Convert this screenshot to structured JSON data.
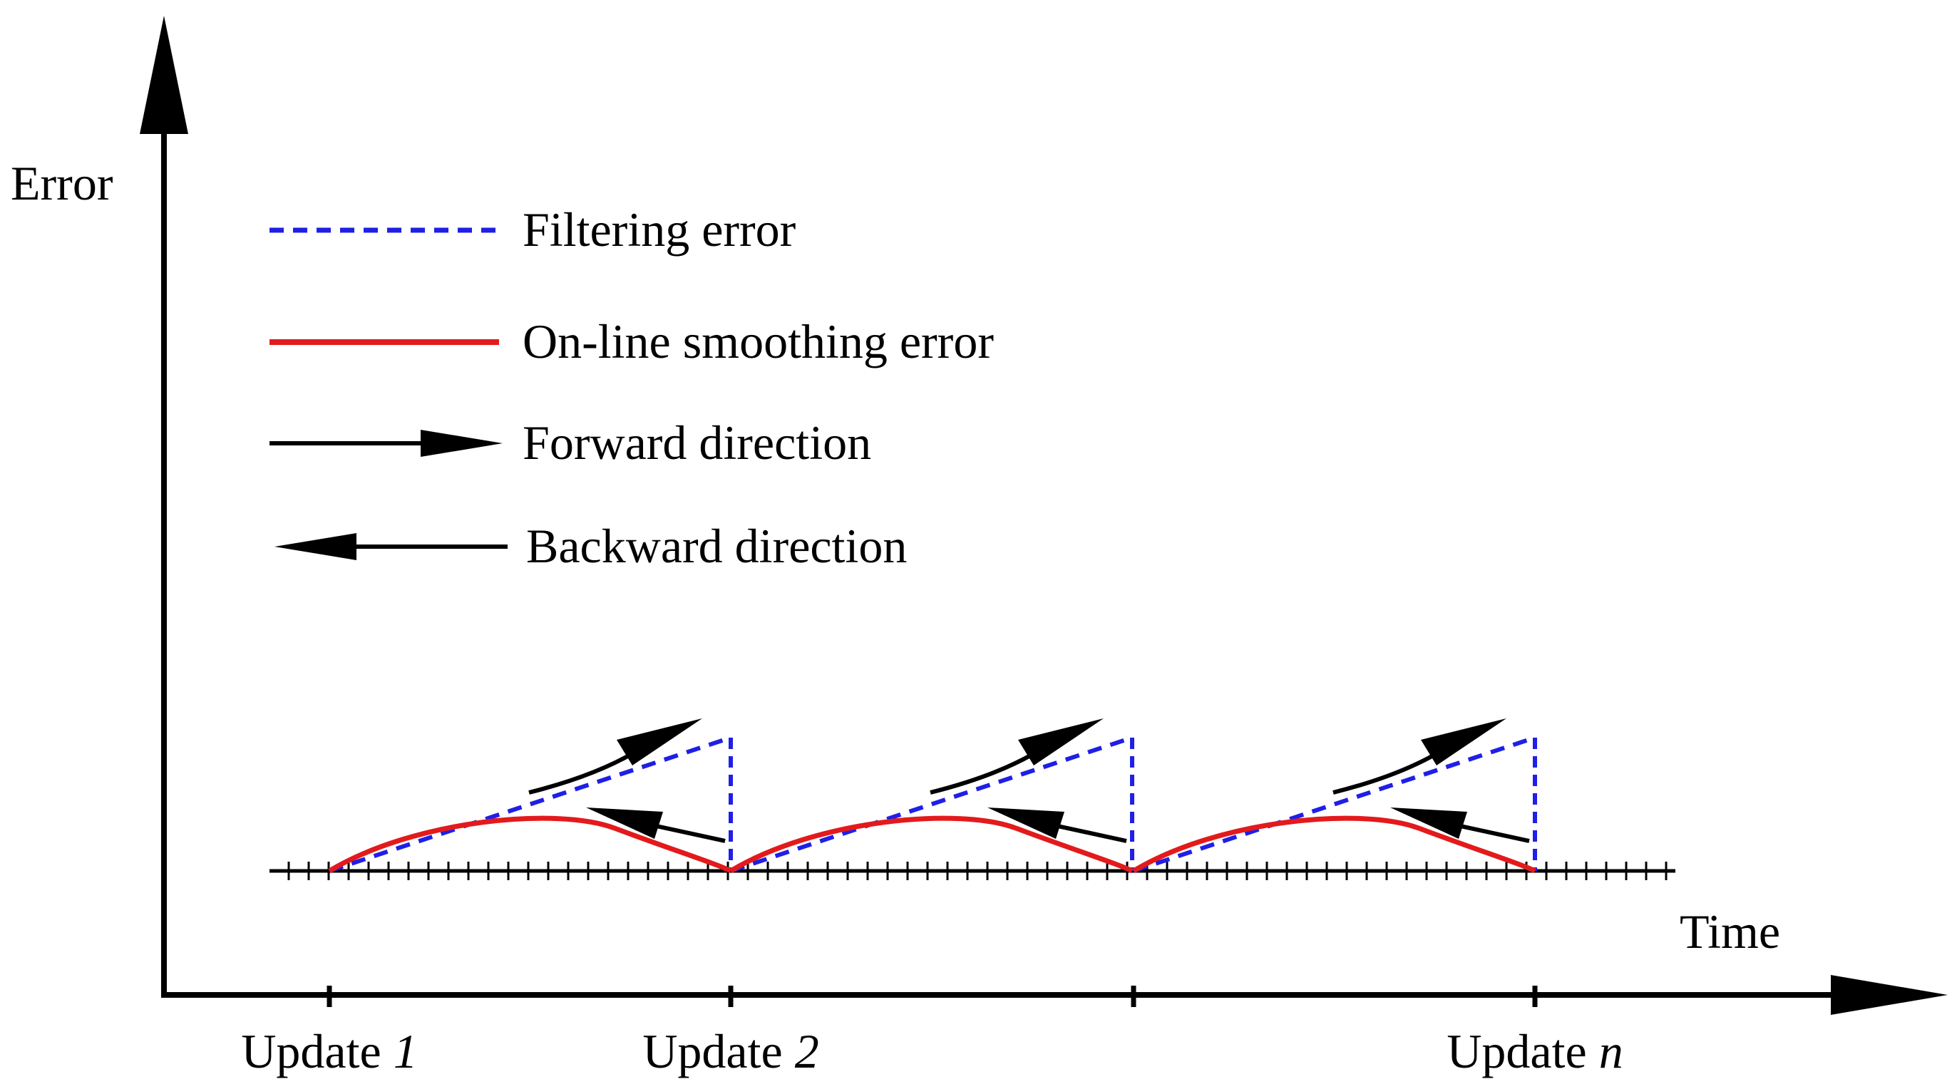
{
  "axes": {
    "y_label": "Error",
    "x_label": "Time"
  },
  "legend": {
    "filtering": "Filtering error",
    "smoothing": "On-line smoothing error",
    "forward": "Forward direction",
    "backward": "Backward direction"
  },
  "updates": [
    {
      "prefix": "Update ",
      "index": "1"
    },
    {
      "prefix": "Update ",
      "index": "2"
    },
    {
      "prefix": "",
      "index": ""
    },
    {
      "prefix": "Update ",
      "index": "n"
    }
  ],
  "colors": {
    "filtering": "#1f1fe6",
    "smoothing": "#e31a1c",
    "axis": "#000000"
  },
  "cycles": 3
}
